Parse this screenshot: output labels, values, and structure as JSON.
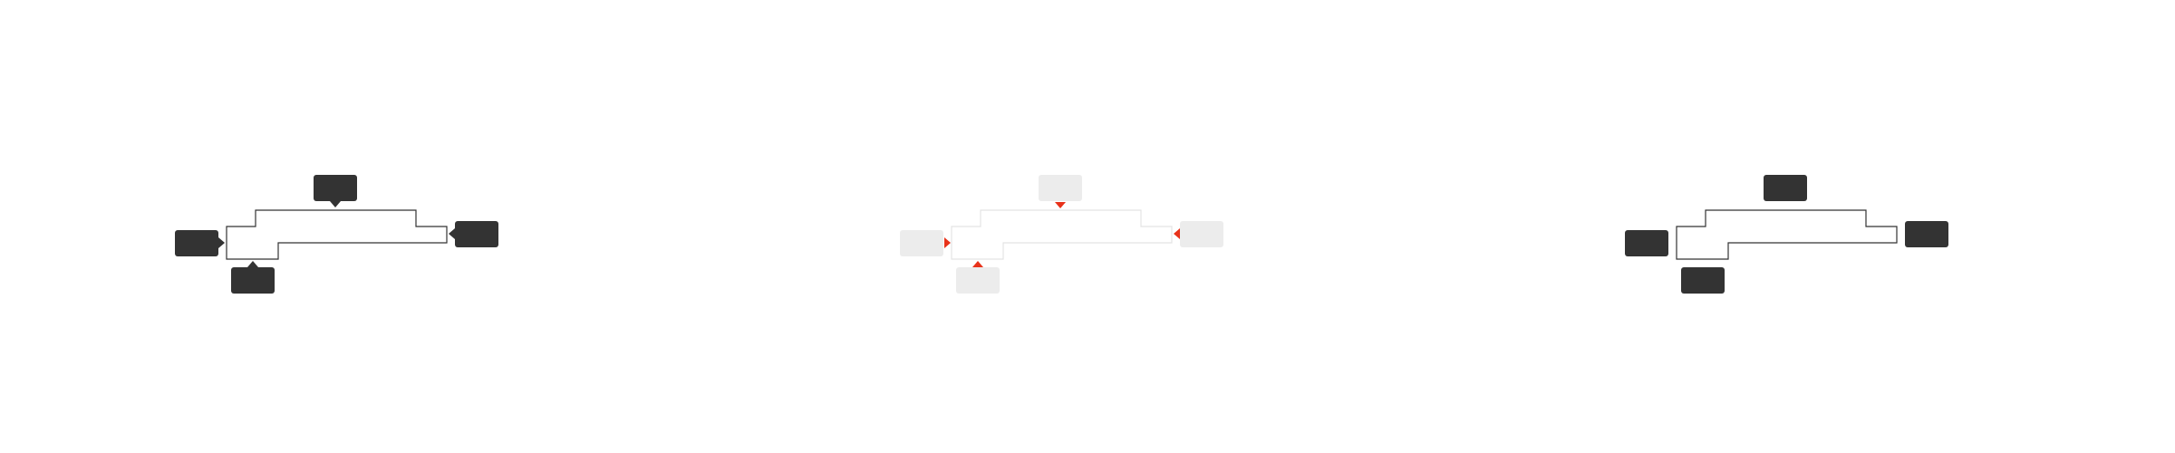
{
  "colors": {
    "background": "#ffffff",
    "outline_dark": "#333333",
    "outline_light": "#e4e4e4",
    "tag_dark": "#333333",
    "tag_light": "#ececec",
    "arrow_dark": "#333333",
    "arrow_highlight": "#e8321a"
  },
  "panels": [
    {
      "variant": "tooltips-with-arrows",
      "theme": "dark",
      "tags": [
        {
          "position": "top",
          "label": ""
        },
        {
          "position": "right",
          "label": ""
        },
        {
          "position": "bottom",
          "label": ""
        },
        {
          "position": "left",
          "label": ""
        }
      ]
    },
    {
      "variant": "arrow-highlight",
      "theme": "light",
      "tags": [
        {
          "position": "top",
          "label": ""
        },
        {
          "position": "right",
          "label": ""
        },
        {
          "position": "bottom",
          "label": ""
        },
        {
          "position": "left",
          "label": ""
        }
      ]
    },
    {
      "variant": "labels-without-arrows",
      "theme": "dark",
      "tags": [
        {
          "position": "top",
          "label": ""
        },
        {
          "position": "right",
          "label": ""
        },
        {
          "position": "bottom",
          "label": ""
        },
        {
          "position": "left",
          "label": ""
        }
      ]
    }
  ]
}
